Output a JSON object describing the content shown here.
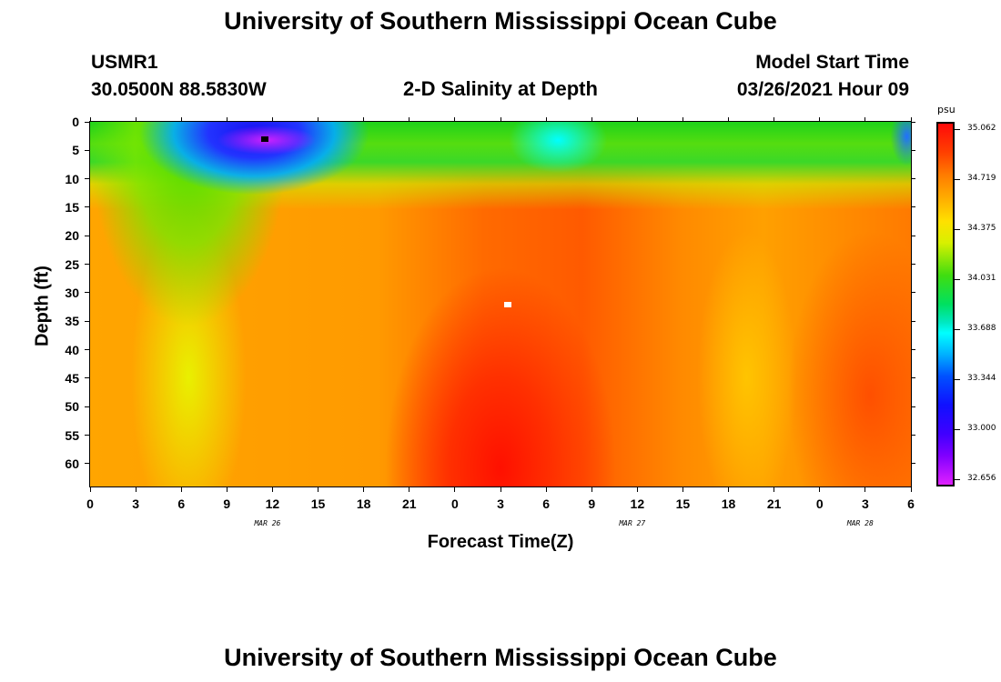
{
  "titles": {
    "top": "University of Southern Mississippi Ocean Cube",
    "bottom": "University of Southern Mississippi Ocean Cube"
  },
  "header": {
    "station": "USMR1",
    "coords": "30.0500N 88.5830W",
    "plot_title": "2-D Salinity at Depth",
    "model_start_label": "Model Start Time",
    "model_start_value": "03/26/2021 Hour 09"
  },
  "chart_data": {
    "type": "heatmap",
    "title": "2-D Salinity at Depth",
    "xlabel": "Forecast Time(Z)",
    "ylabel": "Depth (ft)",
    "x_ticks": [
      "0",
      "3",
      "6",
      "9",
      "12",
      "15",
      "18",
      "21",
      "0",
      "3",
      "6",
      "9",
      "12",
      "15",
      "18",
      "21",
      "0",
      "3",
      "6"
    ],
    "x_hours": [
      0,
      3,
      6,
      9,
      12,
      15,
      18,
      21,
      24,
      27,
      30,
      33,
      36,
      39,
      42,
      45,
      48,
      51,
      54
    ],
    "y_ticks": [
      "0",
      "5",
      "10",
      "15",
      "20",
      "25",
      "30",
      "35",
      "40",
      "45",
      "50",
      "55",
      "60"
    ],
    "y_values": [
      0,
      5,
      10,
      15,
      20,
      25,
      30,
      35,
      40,
      45,
      50,
      55,
      60
    ],
    "ylim": [
      0,
      64
    ],
    "xlim": [
      0,
      54
    ],
    "dates": [
      {
        "label": "MAR 26",
        "hour": 12
      },
      {
        "label": "MAR 27",
        "hour": 36
      },
      {
        "label": "MAR 28",
        "hour": 51
      }
    ],
    "colorbar": {
      "unit": "psu",
      "labels": [
        "35.062",
        "34.719",
        "34.375",
        "34.031",
        "33.688",
        "33.344",
        "33.000",
        "32.656"
      ],
      "min": 32.656,
      "max": 35.062
    },
    "markers": [
      {
        "type": "min",
        "hour": 11.5,
        "depth": 3
      },
      {
        "type": "max",
        "hour": 27.5,
        "depth": 32
      }
    ],
    "summary": "Low salinity (32.7-33.5 psu) near surface around hours 5-18; high salinity (~35 psu) at depth near hour 24-30"
  }
}
